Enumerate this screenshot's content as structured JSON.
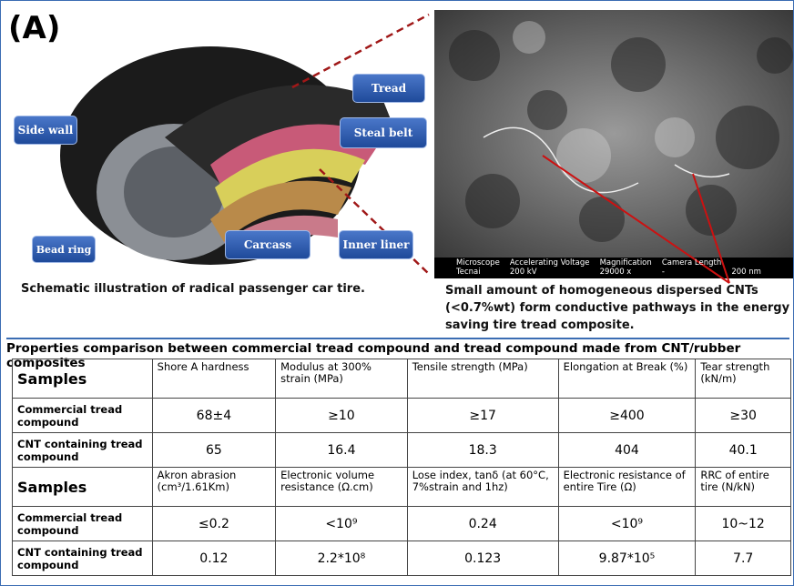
{
  "panel_label": "(A)",
  "tire_labels": {
    "tread": "Tread",
    "steel_belt": "Steal belt",
    "side_wall": "Side wall",
    "carcass": "Carcass",
    "inner_liner": "Inner liner",
    "bead_ring": "Bead ring"
  },
  "tem_info": {
    "headers": [
      "Microscope",
      "Accelerating Voltage",
      "Magnification",
      "Camera Length"
    ],
    "values": [
      "Tecnai",
      "200 kV",
      "29000 x",
      "-"
    ],
    "scale": "200 nm"
  },
  "captions": {
    "tire": "Schematic illustration of radical passenger car tire.",
    "tem": "Small amount of homogeneous dispersed CNTs (<0.7%wt) form conductive pathways in the energy saving tire tread composite."
  },
  "table": {
    "title": "Properties comparison between commercial tread compound and tread compound made from CNT/rubber composites",
    "sections": [
      {
        "header": [
          "Samples",
          "Shore A  hardness",
          "Modulus at 300% strain (MPa)",
          "Tensile strength (MPa)",
          "Elongation at Break (%)",
          "Tear strength (kN/m)"
        ],
        "rows": [
          [
            "Commercial tread compound",
            "68±4",
            "≥10",
            "≥17",
            "≥400",
            "≥30"
          ],
          [
            "CNT containing tread compound",
            "65",
            "16.4",
            "18.3",
            "404",
            "40.1"
          ]
        ]
      },
      {
        "header": [
          "Samples",
          "Akron abrasion (cm³/1.61Km)",
          "Electronic volume resistance (Ω.cm)",
          "Lose index, tanδ (at 60°C, 7%strain and 1hz)",
          "Electronic resistance of entire Tire (Ω)",
          "RRC of entire tire (N/kN)"
        ],
        "rows": [
          [
            "Commercial tread compound",
            "≤0.2",
            "<10⁹",
            "0.24",
            "<10⁹",
            "10~12"
          ],
          [
            "CNT containing tread compound",
            "0.12",
            "2.2*10⁸",
            "0.123",
            "9.87*10⁵",
            "7.7"
          ]
        ]
      }
    ]
  }
}
